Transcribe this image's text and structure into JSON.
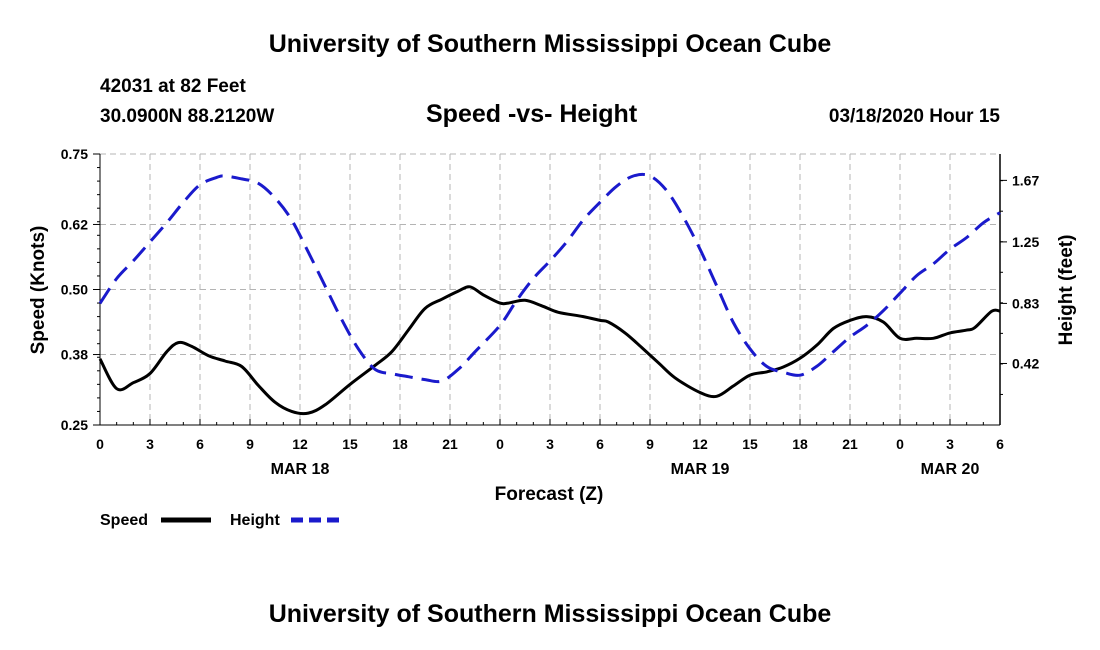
{
  "header": {
    "title": "University of Southern Mississippi Ocean Cube",
    "station": "42031 at 82 Feet",
    "coords": "30.0900N 88.2120W",
    "chart_title": "Speed -vs- Height",
    "datetime": "03/18/2020 Hour 15"
  },
  "footer": {
    "title": "University of Southern Mississippi Ocean Cube"
  },
  "colors": {
    "speed": "#000000",
    "height": "#1a1acc",
    "grid": "#b4b4b4"
  },
  "chart_data": {
    "type": "line",
    "title": "Speed -vs- Height",
    "xlabel": "Forecast (Z)",
    "ylabel": "Speed (Knots)",
    "y2label": "Height (feet)",
    "x_unit": "hours since 03/18 00Z",
    "xlim": [
      0,
      54
    ],
    "x_ticks": [
      0,
      3,
      6,
      9,
      12,
      15,
      18,
      21,
      24,
      27,
      30,
      33,
      36,
      39,
      42,
      45,
      48,
      51,
      54
    ],
    "x_tick_labels": [
      "0",
      "3",
      "6",
      "9",
      "12",
      "15",
      "18",
      "21",
      "0",
      "3",
      "6",
      "9",
      "12",
      "15",
      "18",
      "21",
      "0",
      "3",
      "6"
    ],
    "date_labels": [
      {
        "x": 12,
        "text": "MAR 18"
      },
      {
        "x": 36,
        "text": "MAR 19"
      },
      {
        "x": 51,
        "text": "MAR 20"
      }
    ],
    "ylim": [
      0.25,
      0.75
    ],
    "y_ticks": [
      0.25,
      0.38,
      0.5,
      0.62,
      0.75
    ],
    "y_tick_labels": [
      "0.25",
      "0.38",
      "0.50",
      "0.62",
      "0.75"
    ],
    "y2lim": [
      0,
      1.85
    ],
    "y2_ticks": [
      0.42,
      0.83,
      1.25,
      1.67
    ],
    "y2_tick_labels": [
      "0.42",
      "0.83",
      "1.25",
      "1.67"
    ],
    "grid": true,
    "legend": {
      "position": "bottom-left",
      "speed_label": "Speed",
      "height_label": "Height"
    },
    "series": [
      {
        "name": "Speed",
        "axis": "left",
        "style": "solid",
        "x": [
          0,
          1,
          2,
          3,
          4,
          4.7,
          5.5,
          6.5,
          7.5,
          8.5,
          9.5,
          10.5,
          11.5,
          12.5,
          13.5,
          15,
          16.5,
          17.5,
          18.5,
          19.5,
          20.5,
          21.5,
          22.2,
          23,
          24,
          24.5,
          25.5,
          26.5,
          27.5,
          29,
          30,
          30.5,
          31.5,
          32.5,
          33.5,
          34.5,
          36,
          37,
          38,
          39,
          40,
          41,
          42,
          43,
          44,
          45,
          46,
          47,
          48,
          49,
          50,
          51,
          52,
          52.5,
          53.5,
          54
        ],
        "values": [
          0.372,
          0.317,
          0.328,
          0.345,
          0.385,
          0.402,
          0.395,
          0.378,
          0.368,
          0.358,
          0.323,
          0.292,
          0.275,
          0.272,
          0.287,
          0.325,
          0.36,
          0.385,
          0.425,
          0.465,
          0.482,
          0.497,
          0.505,
          0.49,
          0.475,
          0.475,
          0.48,
          0.47,
          0.458,
          0.45,
          0.443,
          0.44,
          0.42,
          0.393,
          0.365,
          0.337,
          0.31,
          0.303,
          0.322,
          0.342,
          0.348,
          0.357,
          0.373,
          0.397,
          0.428,
          0.443,
          0.45,
          0.44,
          0.41,
          0.41,
          0.41,
          0.42,
          0.425,
          0.43,
          0.46,
          0.46
        ]
      },
      {
        "name": "Height",
        "axis": "right",
        "style": "dashed",
        "x": [
          0,
          1,
          2,
          3,
          4,
          5,
          6,
          7,
          7.5,
          8.5,
          9.5,
          10.5,
          11.5,
          12.5,
          13.5,
          14.5,
          15.5,
          16.5,
          17.5,
          18.5,
          19.5,
          20.5,
          21.5,
          22.5,
          24,
          25,
          26,
          27,
          28,
          29,
          30,
          31,
          32,
          33,
          34,
          35,
          36,
          37,
          38,
          39,
          40,
          41,
          42,
          43,
          44,
          45,
          46,
          47,
          48,
          49,
          50,
          51,
          52,
          53,
          54
        ],
        "values": [
          0.83,
          1.0,
          1.12,
          1.25,
          1.38,
          1.52,
          1.64,
          1.69,
          1.7,
          1.68,
          1.65,
          1.55,
          1.4,
          1.18,
          0.95,
          0.72,
          0.52,
          0.38,
          0.35,
          0.33,
          0.31,
          0.3,
          0.38,
          0.5,
          0.68,
          0.85,
          1.0,
          1.12,
          1.25,
          1.4,
          1.52,
          1.63,
          1.7,
          1.7,
          1.6,
          1.42,
          1.2,
          0.95,
          0.7,
          0.52,
          0.4,
          0.36,
          0.34,
          0.4,
          0.5,
          0.6,
          0.68,
          0.78,
          0.9,
          1.02,
          1.1,
          1.2,
          1.28,
          1.38,
          1.45
        ]
      }
    ]
  }
}
